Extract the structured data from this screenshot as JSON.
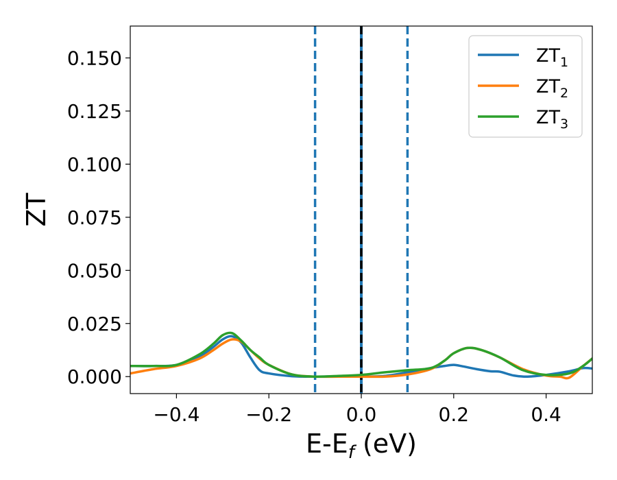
{
  "chart_data": {
    "type": "line",
    "xlabel": "E-E",
    "xlabel_sub": "f",
    "xlabel_unit": " (eV)",
    "ylabel": "ZT",
    "xlim": [
      -0.5,
      0.5
    ],
    "ylim": [
      -0.008,
      0.165
    ],
    "x_ticks": [
      -0.4,
      -0.2,
      0.0,
      0.2,
      0.4
    ],
    "x_tick_labels": [
      "−0.4",
      "−0.2",
      "0.0",
      "0.2",
      "0.4"
    ],
    "y_ticks": [
      0.0,
      0.025,
      0.05,
      0.075,
      0.1,
      0.125,
      0.15
    ],
    "y_tick_labels": [
      "0.000",
      "0.025",
      "0.050",
      "0.075",
      "0.100",
      "0.125",
      "0.150"
    ],
    "grid": false,
    "legend_position": "top-right",
    "vlines": [
      {
        "x": -0.1,
        "style": "dashed",
        "color": "#1f77b4"
      },
      {
        "x": 0.0,
        "style": "solid",
        "color": "#1f77b4"
      },
      {
        "x": 0.0,
        "style": "dashed",
        "color": "#000000"
      },
      {
        "x": 0.1,
        "style": "dashed",
        "color": "#1f77b4"
      }
    ],
    "series": [
      {
        "name": "ZT",
        "sub": "1",
        "color": "#1f77b4",
        "x": [
          -0.5,
          -0.45,
          -0.4,
          -0.35,
          -0.32,
          -0.3,
          -0.28,
          -0.26,
          -0.24,
          -0.22,
          -0.2,
          -0.15,
          -0.1,
          -0.05,
          0.0,
          0.05,
          0.1,
          0.15,
          0.18,
          0.2,
          0.22,
          0.25,
          0.28,
          0.3,
          0.33,
          0.36,
          0.4,
          0.45,
          0.48,
          0.5
        ],
        "y": [
          0.005,
          0.005,
          0.0055,
          0.0095,
          0.014,
          0.0175,
          0.019,
          0.016,
          0.009,
          0.003,
          0.0015,
          0.0002,
          0.0,
          0.0001,
          0.0,
          0.0003,
          0.002,
          0.004,
          0.005,
          0.0055,
          0.0048,
          0.0035,
          0.0025,
          0.0023,
          0.0005,
          0.0,
          0.0008,
          0.0025,
          0.004,
          0.0038
        ]
      },
      {
        "name": "ZT",
        "sub": "2",
        "color": "#ff7f0e",
        "x": [
          -0.5,
          -0.45,
          -0.4,
          -0.35,
          -0.32,
          -0.3,
          -0.28,
          -0.26,
          -0.24,
          -0.22,
          -0.2,
          -0.15,
          -0.1,
          -0.05,
          0.0,
          0.05,
          0.1,
          0.15,
          0.18,
          0.2,
          0.23,
          0.26,
          0.3,
          0.35,
          0.4,
          0.43,
          0.45,
          0.48,
          0.5
        ],
        "y": [
          0.0015,
          0.0035,
          0.005,
          0.0085,
          0.0125,
          0.0155,
          0.0175,
          0.0165,
          0.0125,
          0.0085,
          0.0055,
          0.001,
          0.0,
          0.0,
          0.0,
          0.0,
          0.001,
          0.0035,
          0.0075,
          0.011,
          0.0135,
          0.0125,
          0.009,
          0.0035,
          0.0005,
          0.0,
          -0.0005,
          0.005,
          0.0085
        ]
      },
      {
        "name": "ZT",
        "sub": "3",
        "color": "#2ca02c",
        "x": [
          -0.5,
          -0.45,
          -0.4,
          -0.35,
          -0.32,
          -0.3,
          -0.28,
          -0.26,
          -0.24,
          -0.22,
          -0.2,
          -0.15,
          -0.1,
          -0.05,
          0.0,
          0.05,
          0.1,
          0.15,
          0.18,
          0.2,
          0.23,
          0.26,
          0.3,
          0.35,
          0.4,
          0.45,
          0.48,
          0.5
        ],
        "y": [
          0.005,
          0.005,
          0.0055,
          0.0105,
          0.0155,
          0.0195,
          0.0205,
          0.017,
          0.0125,
          0.009,
          0.0055,
          0.001,
          0.0,
          0.0003,
          0.0008,
          0.002,
          0.003,
          0.004,
          0.0075,
          0.011,
          0.0135,
          0.0125,
          0.009,
          0.003,
          0.0008,
          0.0015,
          0.005,
          0.0085
        ]
      }
    ]
  }
}
